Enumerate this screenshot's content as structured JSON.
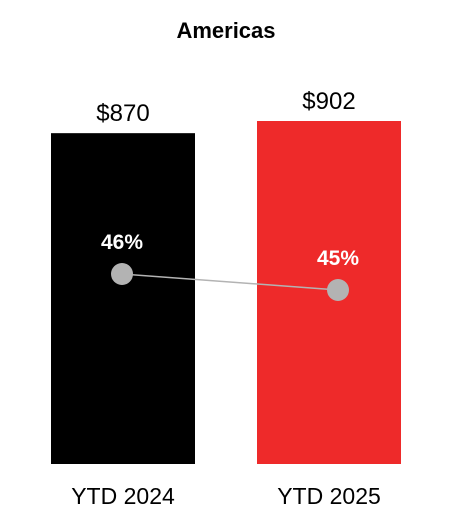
{
  "chart_data": {
    "type": "bar",
    "title": "Americas",
    "categories": [
      "YTD 2024",
      "YTD 2025"
    ],
    "values": [
      870,
      902
    ],
    "value_labels": [
      "$870",
      "$902"
    ],
    "ylim": [
      0,
      1000
    ],
    "grid": false,
    "legend": "none",
    "bar_colors": [
      "#000000",
      "#ee2a2a"
    ],
    "line_series": {
      "values": [
        46,
        45
      ],
      "labels": [
        "46%",
        "45%"
      ],
      "marker_color": "#b3b3b3",
      "line_color": "#b3b3b3"
    }
  }
}
